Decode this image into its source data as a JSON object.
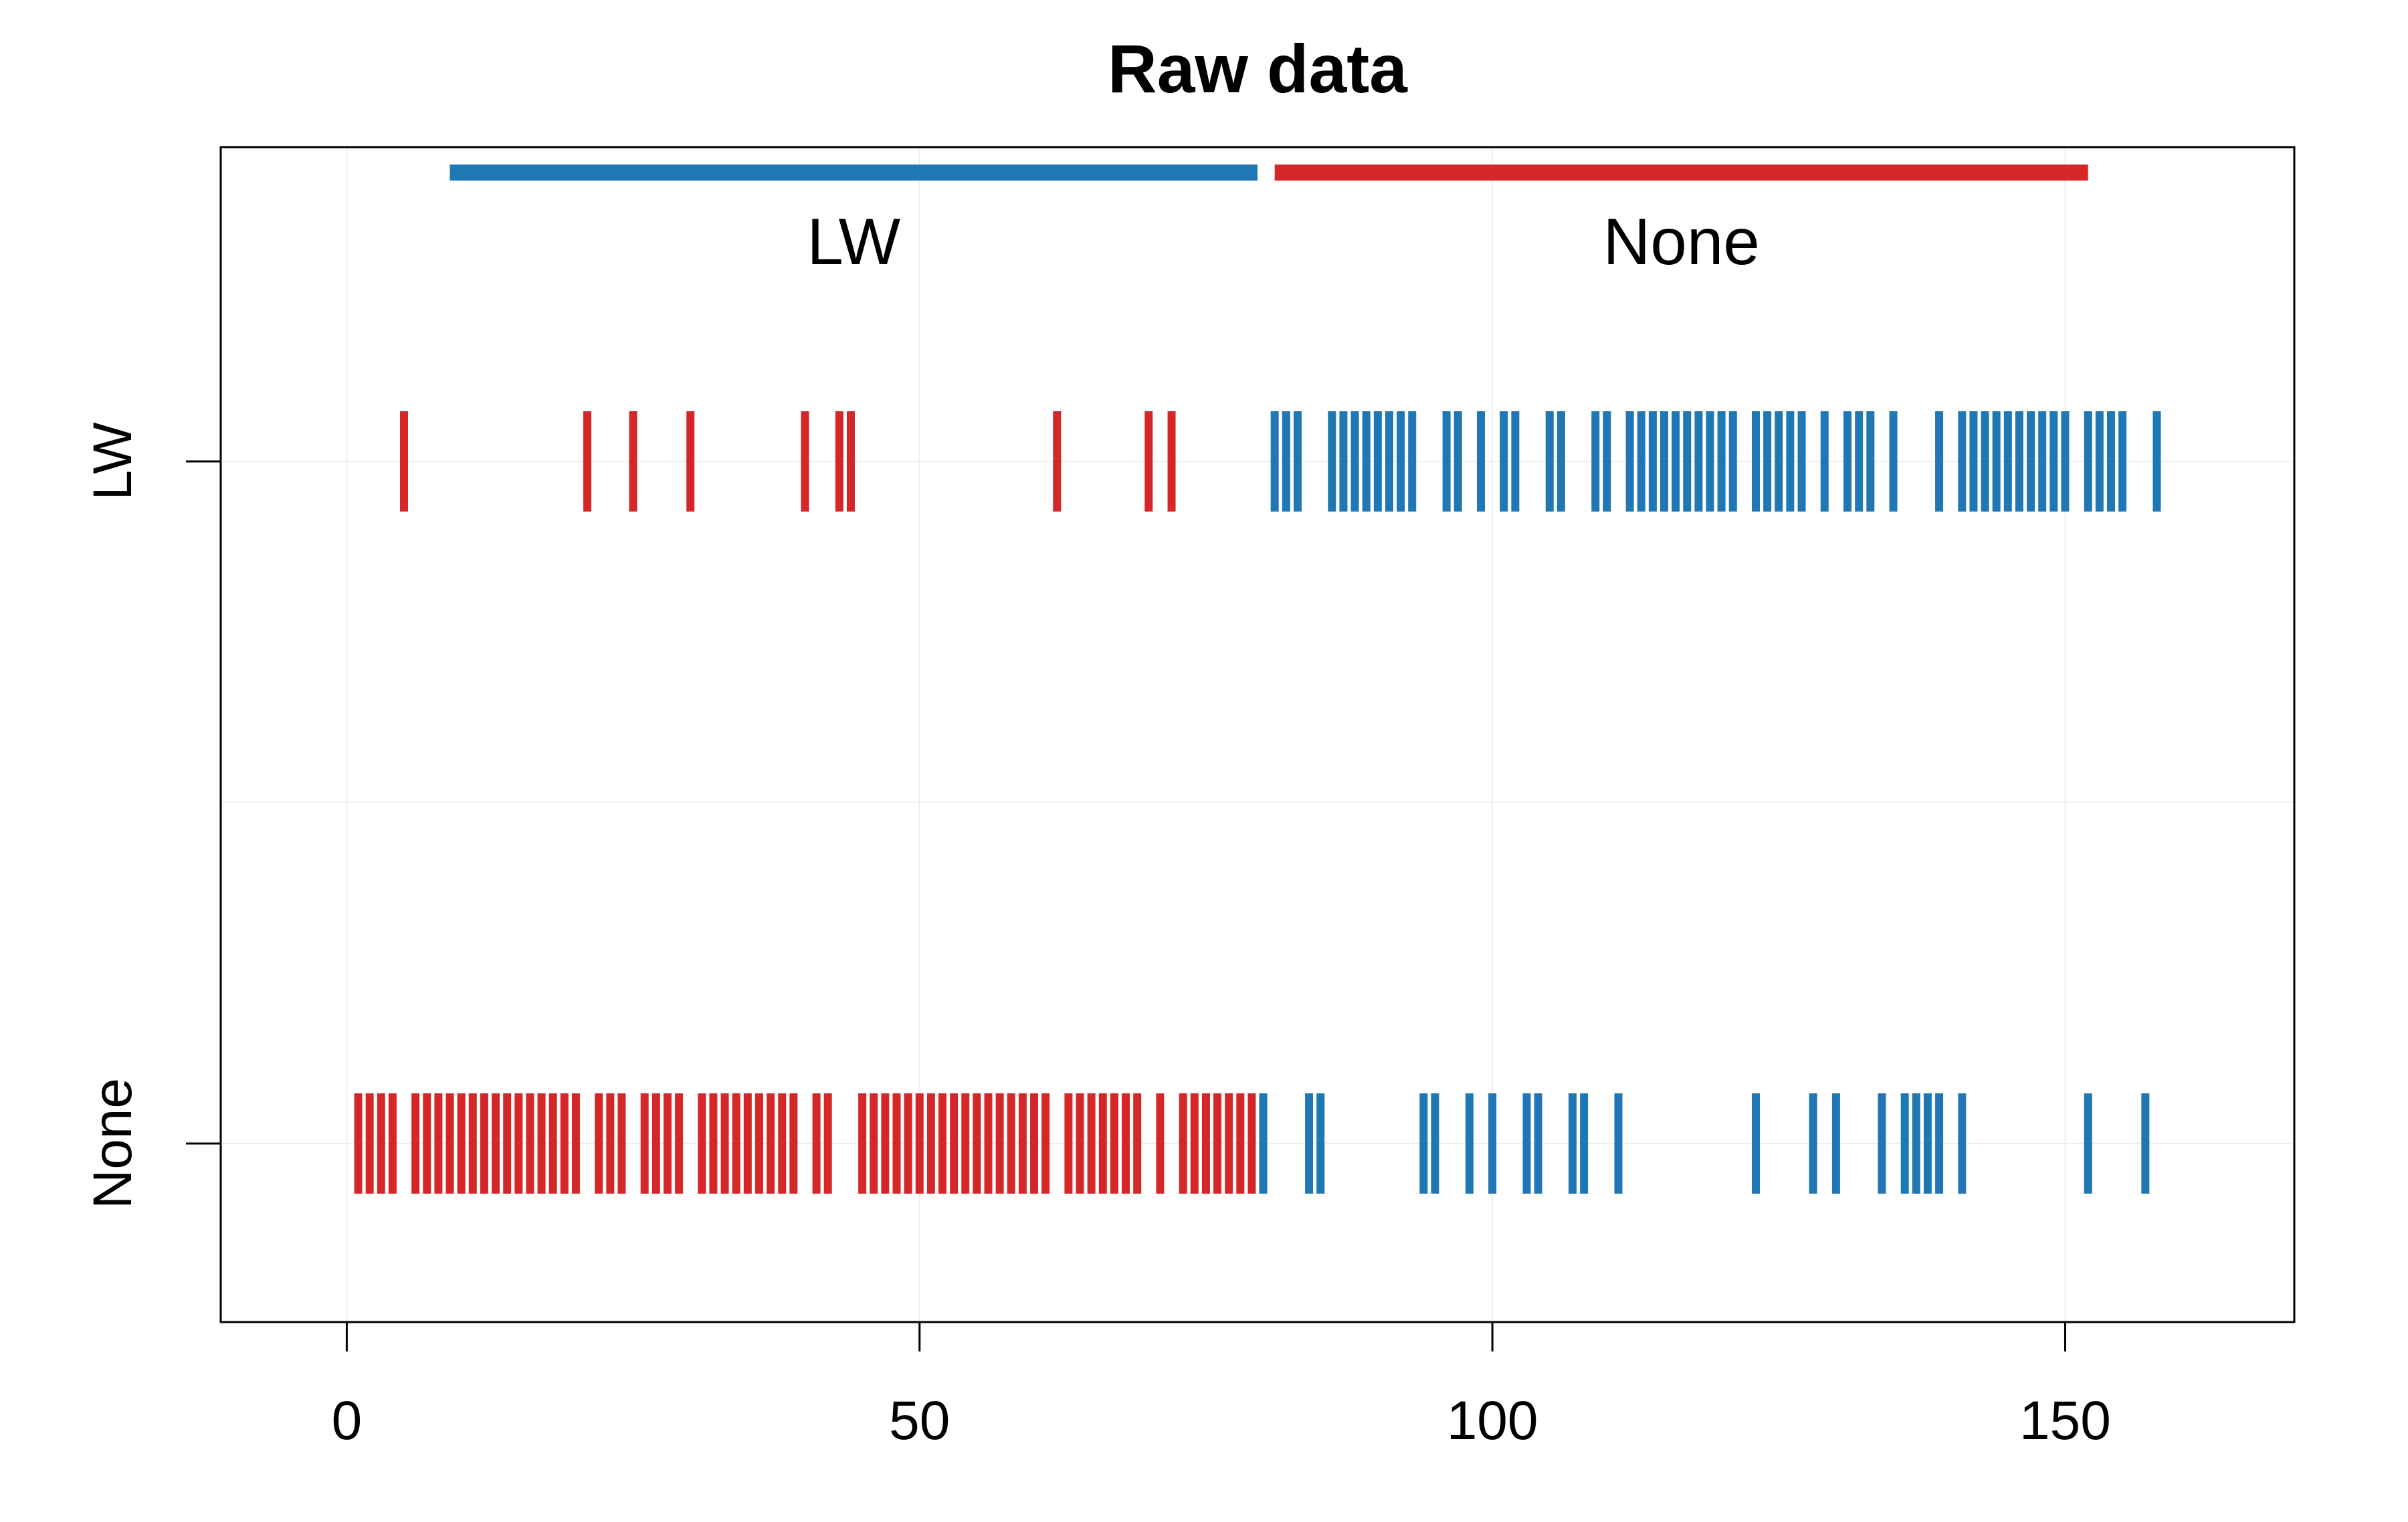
{
  "chart_data": {
    "type": "strip",
    "title": "Raw data",
    "xlabel": "",
    "ylabel": "",
    "xlim": [
      -11,
      170
    ],
    "x_ticks": [
      0,
      50,
      100,
      150
    ],
    "x_tick_labels": [
      "0",
      "50",
      "100",
      "150"
    ],
    "y_categories": [
      "LW",
      "None"
    ],
    "grid": true,
    "colors": {
      "red": "#d62728",
      "blue": "#1f77b4",
      "grid": "#eeeeee",
      "axis": "#000000"
    },
    "phases": [
      {
        "label": "LW",
        "start": 9,
        "end": 79.5,
        "color": "#1f77b4"
      },
      {
        "label": "None",
        "start": 81,
        "end": 152,
        "color": "#d62728"
      }
    ],
    "series": [
      {
        "category": "LW",
        "color": "#d62728",
        "x": [
          5,
          21,
          25,
          30,
          40,
          43,
          44,
          62,
          70,
          72
        ]
      },
      {
        "category": "LW",
        "color": "#1f77b4",
        "x": [
          81,
          82,
          83,
          86,
          87,
          88,
          89,
          90,
          91,
          92,
          93,
          96,
          97,
          99,
          101,
          102,
          105,
          106,
          109,
          110,
          112,
          113,
          114,
          115,
          116,
          117,
          118,
          119,
          120,
          121,
          123,
          124,
          125,
          126,
          127,
          129,
          131,
          132,
          133,
          135,
          139,
          141,
          142,
          143,
          144,
          145,
          146,
          147,
          148,
          149,
          150,
          152,
          153,
          154,
          155,
          158
        ]
      },
      {
        "category": "None",
        "color": "#d62728",
        "x": [
          1,
          2,
          3,
          4,
          6,
          7,
          8,
          9,
          10,
          11,
          12,
          13,
          14,
          15,
          16,
          17,
          18,
          19,
          20,
          22,
          23,
          24,
          26,
          27,
          28,
          29,
          31,
          32,
          33,
          34,
          35,
          36,
          37,
          38,
          39,
          41,
          42,
          45,
          46,
          47,
          48,
          49,
          50,
          51,
          52,
          53,
          54,
          55,
          56,
          57,
          58,
          59,
          60,
          61,
          63,
          64,
          65,
          66,
          67,
          68,
          69,
          71,
          73,
          74,
          75,
          76,
          77,
          78,
          79
        ]
      },
      {
        "category": "None",
        "color": "#1f77b4",
        "x": [
          80,
          84,
          85,
          94,
          95,
          98,
          100,
          103,
          104,
          107,
          108,
          111,
          123,
          128,
          130,
          134,
          136,
          137,
          138,
          139,
          141,
          152,
          157
        ]
      }
    ]
  }
}
